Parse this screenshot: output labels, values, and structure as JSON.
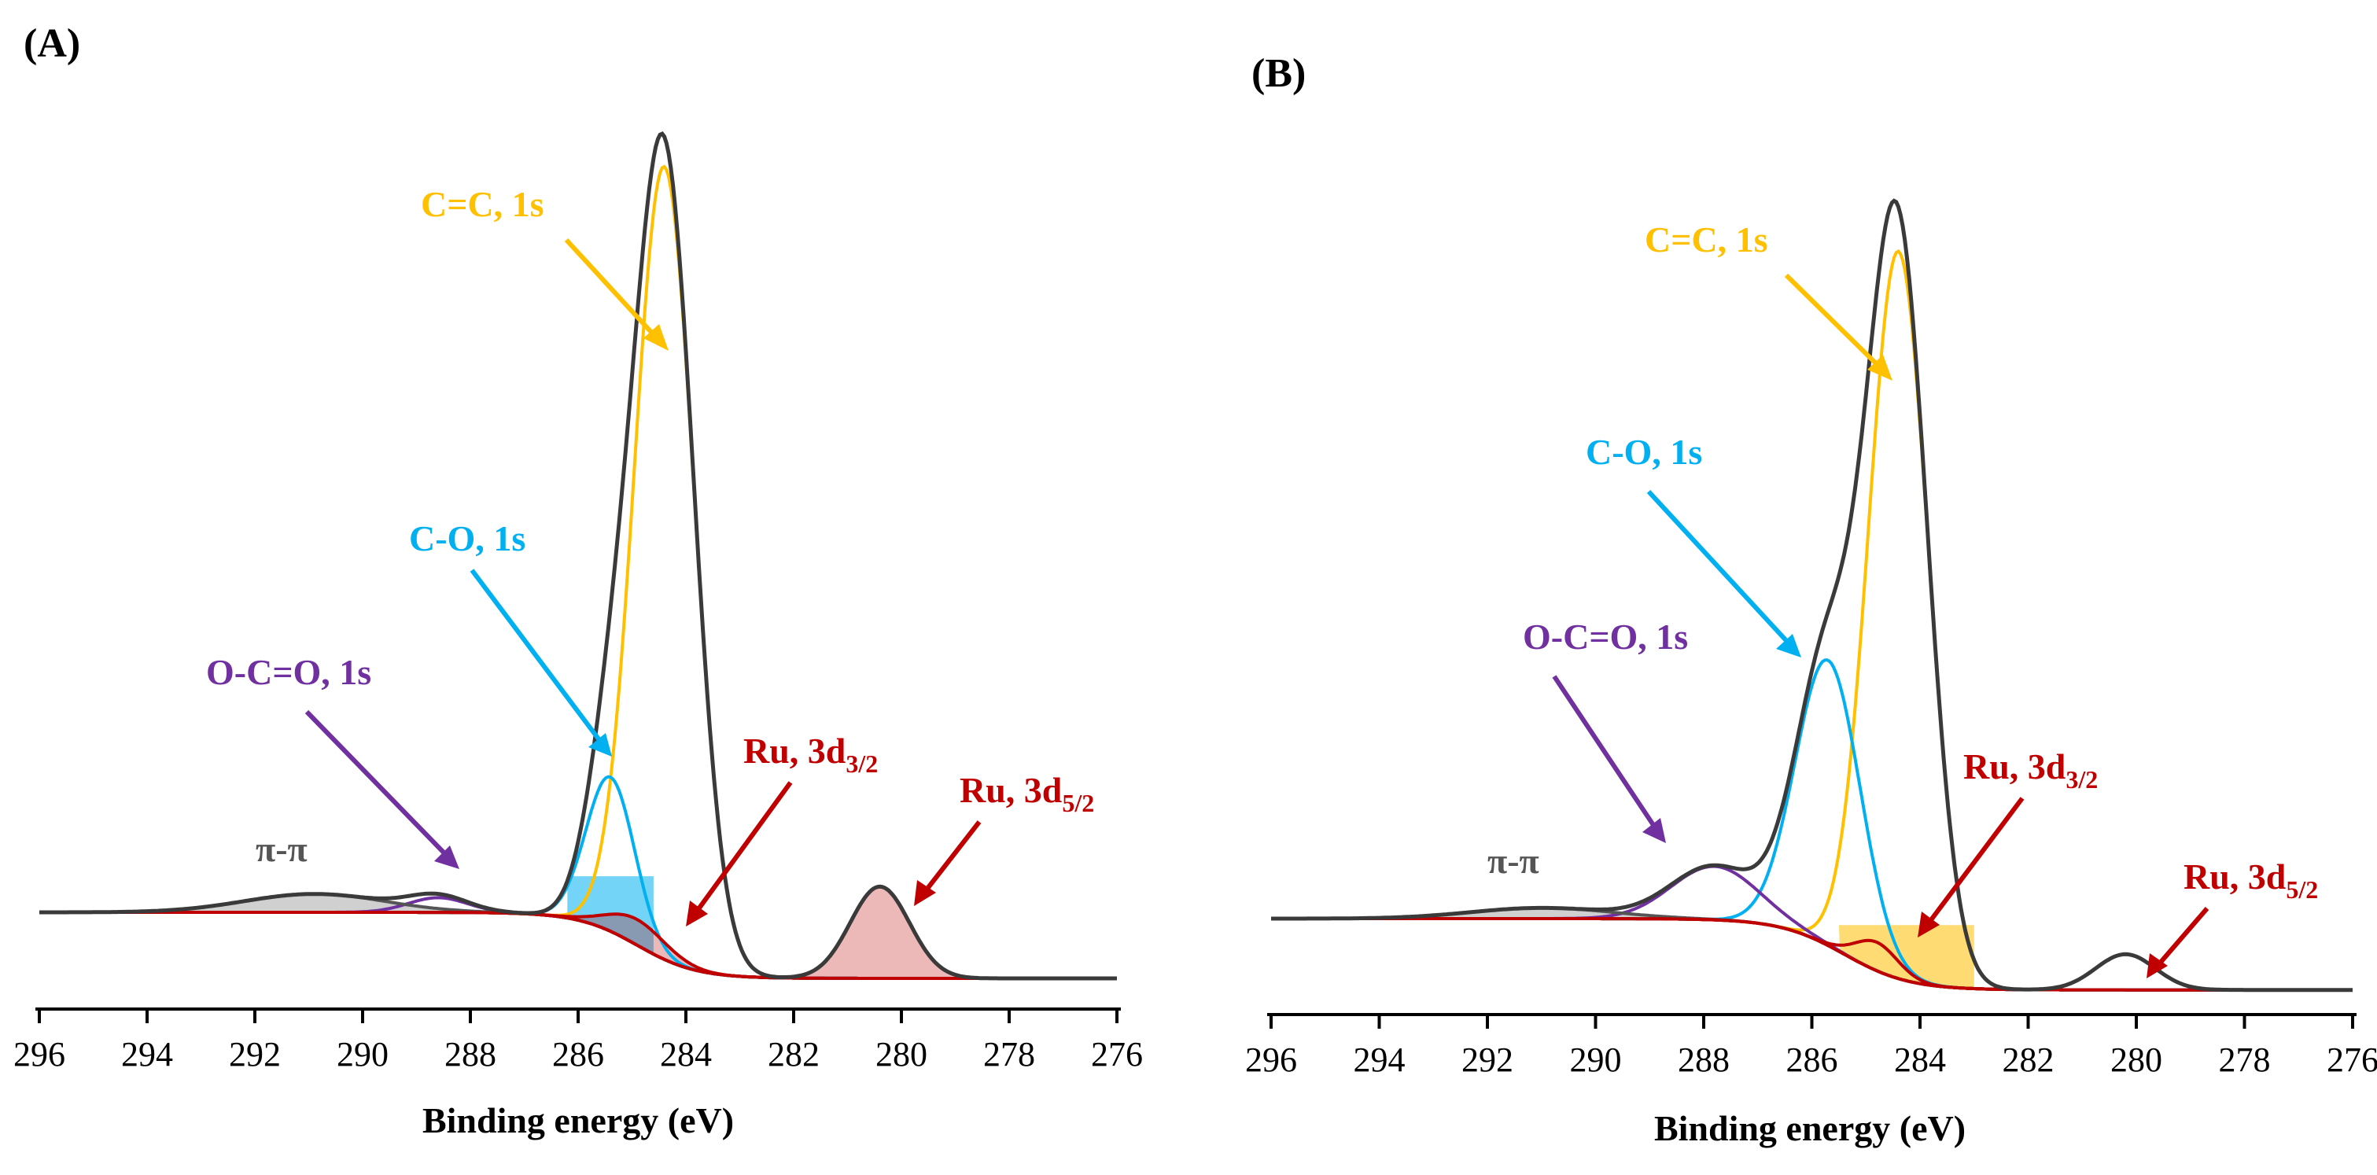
{
  "colors": {
    "envelope": "#3a3a3a",
    "background": "#000000",
    "cc": "#ffc000",
    "co": "#00b0f0",
    "oco": "#7030a0",
    "ru": "#c00000",
    "pipi": "#555555"
  },
  "chart_data": [
    {
      "type": "line",
      "panel_label": "(A)",
      "xlabel": "Binding energy (eV)",
      "ylabel": "",
      "xlim": [
        296,
        276
      ],
      "ylim": [
        -0.12,
        1.2
      ],
      "x_ticks": [
        296,
        294,
        292,
        290,
        288,
        286,
        284,
        282,
        280,
        278,
        276
      ],
      "y_axis_visible": false,
      "annotations": [
        {
          "id": "cc",
          "text": "C=C, 1s",
          "color": "cc"
        },
        {
          "id": "co",
          "text": "C-O, 1s",
          "color": "co"
        },
        {
          "id": "oco",
          "text": "O-C=O, 1s",
          "color": "oco"
        },
        {
          "id": "pipi",
          "text": "π-π",
          "color": "pipi"
        },
        {
          "id": "ru32",
          "text": "Ru, 3d",
          "sub": "3/2",
          "color": "ru"
        },
        {
          "id": "ru52",
          "text": "Ru, 3d",
          "sub": "5/2",
          "color": "ru"
        }
      ],
      "series": [
        {
          "name": "Background",
          "color": "background",
          "type": "background",
          "left": 0.0,
          "right": -0.09,
          "center": 284.9,
          "width": 0.55
        },
        {
          "name": "C=C, 1s",
          "color": "cc",
          "center": 284.4,
          "height": 1.08,
          "sigma": 0.55
        },
        {
          "name": "C-O, 1s",
          "color": "co",
          "center": 285.4,
          "height": 0.21,
          "sigma": 0.45,
          "fill_band": [
            286.2,
            284.6
          ]
        },
        {
          "name": "O-C=O, 1s",
          "color": "oco",
          "center": 288.6,
          "height": 0.02,
          "sigma": 0.55
        },
        {
          "name": "π-π",
          "color": "pipi",
          "center": 290.9,
          "height": 0.025,
          "sigma": 1.3,
          "fill": true
        },
        {
          "name": "Ru, 3d3/2",
          "color": "ru",
          "center": 284.9,
          "height": 0.035,
          "sigma": 0.55,
          "fill": true
        },
        {
          "name": "Ru, 3d5/2",
          "color": "ru",
          "center": 280.4,
          "height": 0.125,
          "sigma": 0.55,
          "fill": true
        }
      ]
    },
    {
      "type": "line",
      "panel_label": "(B)",
      "xlabel": "Binding energy (eV)",
      "ylabel": "",
      "xlim": [
        296,
        276
      ],
      "ylim": [
        -0.12,
        1.2
      ],
      "x_ticks": [
        296,
        294,
        292,
        290,
        288,
        286,
        284,
        282,
        280,
        278,
        276
      ],
      "y_axis_visible": false,
      "annotations": [
        {
          "id": "cc",
          "text": "C=C, 1s",
          "color": "cc"
        },
        {
          "id": "co",
          "text": "C-O, 1s",
          "color": "co"
        },
        {
          "id": "oco",
          "text": "O-C=O, 1s",
          "color": "oco"
        },
        {
          "id": "pipi",
          "text": "π-π",
          "color": "pipi"
        },
        {
          "id": "ru32",
          "text": "Ru, 3d",
          "sub": "3/2",
          "color": "ru"
        },
        {
          "id": "ru52",
          "text": "Ru, 3d",
          "sub": "5/2",
          "color": "ru"
        }
      ],
      "series": [
        {
          "name": "Background",
          "color": "background",
          "type": "background",
          "left": 0.0,
          "right": -0.1,
          "center": 285.4,
          "width": 0.6
        },
        {
          "name": "C=C, 1s",
          "color": "cc",
          "center": 284.4,
          "height": 1.02,
          "sigma": 0.55,
          "fill_band": [
            285.5,
            283.0
          ]
        },
        {
          "name": "C-O, 1s",
          "color": "co",
          "center": 285.7,
          "height": 0.4,
          "sigma": 0.6
        },
        {
          "name": "O-C=O, 1s",
          "color": "oco",
          "center": 287.8,
          "height": 0.075,
          "sigma": 0.8
        },
        {
          "name": "π-π",
          "color": "pipi",
          "center": 291.0,
          "height": 0.015,
          "sigma": 1.3,
          "fill": true
        },
        {
          "name": "Ru, 3d3/2",
          "color": "ru",
          "center": 284.8,
          "height": 0.04,
          "sigma": 0.4
        },
        {
          "name": "Ru, 3d5/2",
          "color": "ru",
          "center": 280.2,
          "height": 0.05,
          "sigma": 0.55
        }
      ]
    }
  ]
}
